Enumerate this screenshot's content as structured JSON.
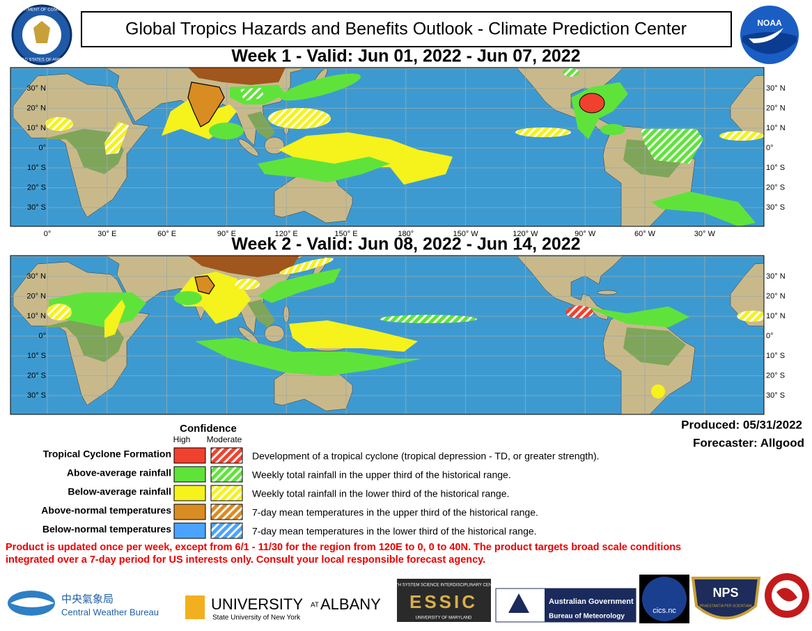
{
  "header": {
    "title": "Global Tropics Hazards and Benefits Outlook - Climate Prediction Center",
    "seal_top": "DEPARTMENT OF COMMERCE",
    "seal_bottom": "UNITED STATES OF AMERICA",
    "noaa": "NOAA"
  },
  "maps": [
    {
      "heading": "Week 1 - Valid: Jun 01, 2022 - Jun 07, 2022"
    },
    {
      "heading": "Week 2 - Valid: Jun 08, 2022 - Jun 14, 2022"
    }
  ],
  "latitude_labels": [
    "30° N",
    "20° N",
    "10° N",
    "0°",
    "10° S",
    "20° S",
    "30° S"
  ],
  "longitude_labels": [
    "0°",
    "30° E",
    "60° E",
    "90° E",
    "120° E",
    "150° E",
    "180°",
    "150° W",
    "120° W",
    "90° W",
    "60° W",
    "30° W"
  ],
  "legend": {
    "title": "Confidence",
    "high": "High",
    "moderate": "Moderate",
    "rows": [
      {
        "label": "Tropical Cyclone Formation",
        "description": "Development of a tropical cyclone (tropical depression - TD, or greater strength)."
      },
      {
        "label": "Above-average rainfall",
        "description": "Weekly total rainfall in the upper third of the historical range."
      },
      {
        "label": "Below-average rainfall",
        "description": "Weekly total rainfall in the lower third of the historical range."
      },
      {
        "label": "Above-normal temperatures",
        "description": "7-day mean temperatures in the upper third of the historical range."
      },
      {
        "label": "Below-normal temperatures",
        "description": "7-day mean temperatures in the lower third of the historical range."
      }
    ]
  },
  "produced": "Produced: 05/31/2022",
  "forecaster": "Forecaster: Allgood",
  "disclaimer": [
    "Product is updated once per week, except from 6/1 - 11/30 for the region from 120E to 0, 0 to 40N. The product targets broad scale conditions",
    "integrated over a 7-day period for US interests only.  Consult your local responsible forecast agency."
  ],
  "logos": {
    "cwb_chinese": "中央氣象局",
    "cwb_english": "Central Weather Bureau",
    "albany_university": "UNIVERSITY",
    "albany_at": "AT",
    "albany_name": "ALBANY",
    "albany_sub": "State University of New York",
    "essic_top": "EARTH SYSTEM SCIENCE INTERDISCIPLINARY CENTER",
    "essic": "ESSIC",
    "essic_bottom": "UNIVERSITY OF MARYLAND",
    "aus_gov": "Australian Government",
    "aus_bom": "Bureau of Meteorology",
    "cics": "cics.nc",
    "nps": "NPS",
    "nps_motto": "PRAESTANTIA PER SCIENTIAM"
  }
}
